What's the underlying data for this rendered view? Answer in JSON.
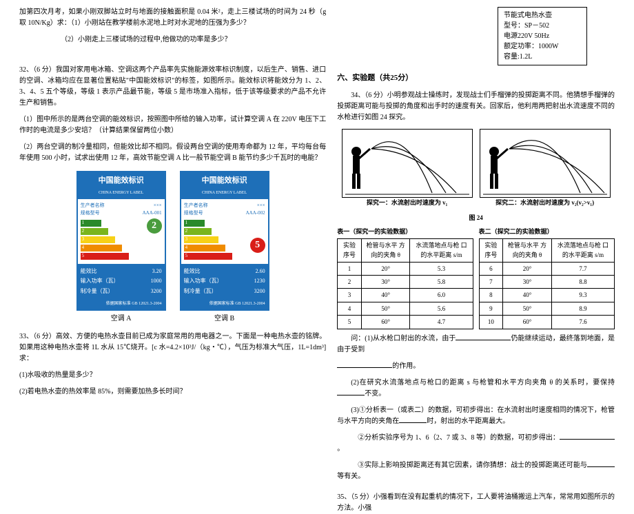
{
  "left": {
    "q_intro": "加第四次月考，如果小刚双脚站立时与地面的接触面积是 0.04 米²，走上三楼试场的时间为 24 秒（g 取 10N/Kg）求：（1）小刚站在教学楼前水泥地上时对水泥地的压强为多少？",
    "q_intro2": "（2）小刚走上三楼试场的过程中,他做功的功率是多少？",
    "q32": "32、（6 分）我国对家用电冰箱、空调这两个产品率先实施能源效率标识制度，以后生产、销售、进口的空调、冰箱均应在显著位置粘贴\"中国能效标识\"的标签，如图所示。能效标识将能效分为 1、2、3、4、5 五个等级，等级 1 表示产品最节能，等级 5 是市场准入指标，低于该等级要求的产品不允许生产和销售。",
    "q32_1": "（1）图中所示的是两台空调的能效标识，按照图中所给的输入功率，试计算空调 A 在 220V 电压下工作时的电流是多少安培？（计算结果保留两位小数）",
    "q32_2": "（2）两台空调的制冷量相同，但能效比却不相同。假设两台空调的使用寿命都为 12 年，平均每台每年使用 500 小时，试求出使用 12 年，高效节能空调 A 比一般节能空调 B 能节约多少千瓦时的电能？",
    "labelA": {
      "title": "中国能效标识",
      "sub": "CHINA ENERGY LABEL",
      "producer_label": "生产者名称",
      "producer": "×××",
      "model_label": "规格型号",
      "model": "AAA-001",
      "eff_level": "2",
      "eff_color": "#4a9c3e",
      "bars": [
        {
          "w": 30,
          "c": "#2a8a2a",
          "t": "1"
        },
        {
          "w": 40,
          "c": "#7ab51d",
          "t": "2"
        },
        {
          "w": 50,
          "c": "#f7d117",
          "t": "3"
        },
        {
          "w": 60,
          "c": "#f08c00",
          "t": "4"
        },
        {
          "w": 70,
          "c": "#d91e18",
          "t": "5"
        }
      ],
      "rows": [
        {
          "k": "能效比",
          "v": "3.20"
        },
        {
          "k": "输入功率（瓦）",
          "v": "1000"
        },
        {
          "k": "制冷量（瓦）",
          "v": "3200"
        }
      ],
      "std": "依据国家标准 GB 12021.3-2004",
      "caption": "空调 A"
    },
    "labelB": {
      "title": "中国能效标识",
      "sub": "CHINA ENERGY LABEL",
      "producer_label": "生产者名称",
      "producer": "×××",
      "model_label": "规格型号",
      "model": "AAA-002",
      "eff_level": "5",
      "eff_color": "#d91e18",
      "bars": [
        {
          "w": 30,
          "c": "#2a8a2a",
          "t": "1"
        },
        {
          "w": 40,
          "c": "#7ab51d",
          "t": "2"
        },
        {
          "w": 50,
          "c": "#f7d117",
          "t": "3"
        },
        {
          "w": 60,
          "c": "#f08c00",
          "t": "4"
        },
        {
          "w": 70,
          "c": "#d91e18",
          "t": "5"
        }
      ],
      "rows": [
        {
          "k": "能效比",
          "v": "2.60"
        },
        {
          "k": "输入功率（瓦）",
          "v": "1230"
        },
        {
          "k": "制冷量（瓦）",
          "v": "3200"
        }
      ],
      "std": "依据国家标准 GB 12021.3-2004",
      "caption": "空调 B"
    },
    "q33": "33、（6 分）高效、方便的电热水壶目前已成为家庭常用的用电器之一。下面是一种电热水壶的铭牌。如果用这种电热水壶将 1L 水从 15℃烧开。[c 水=4.2×10³J/（kg・℃），气压为标准大气压，1L=1dm³]求：",
    "q33_1": "(1)水吸收的热量是多少？",
    "q33_2": "(2)若电热水壶的热效率是 85%，则需要加热多长时间？"
  },
  "right": {
    "spec": {
      "l1": "节能式电热水壶",
      "l2": "型号：SP－502",
      "l3": "电源220V 50Hz",
      "l4": "额定功率：1000W",
      "l5": "容量:1.2L"
    },
    "section": "六、实验题（共25分）",
    "q34": "34、（6 分）小明参观战士操练时，发现战士们手榴弹的投掷距离不同。他猜想手榴弹的投掷距离可能与投掷的角度和出手时的速度有关。回家后，他利用两把射出水流速度不同的水枪进行如图 24 探究。",
    "fig1_cap": "探究一：水流射出时速度为 v₁",
    "fig2_cap": "探究二：水流射出时速度为 v₂(v₂>v₁)",
    "fig_main_cap": "图 24",
    "table1_title": "表一（探究一的实验数据）",
    "table2_title": "表二（探究二的实验数据）",
    "th": {
      "c1": "实验\n序号",
      "c2": "枪管与水平\n方向的夹角 θ",
      "c3": "水流落地点与枪\n口的水平距离 s/m"
    },
    "t1": [
      [
        "1",
        "20°",
        "5.3"
      ],
      [
        "2",
        "30°",
        "5.8"
      ],
      [
        "3",
        "40°",
        "6.0"
      ],
      [
        "4",
        "50°",
        "5.6"
      ],
      [
        "5",
        "60°",
        "4.7"
      ]
    ],
    "t2": [
      [
        "6",
        "20°",
        "7.7"
      ],
      [
        "7",
        "30°",
        "8.8"
      ],
      [
        "8",
        "40°",
        "9.3"
      ],
      [
        "9",
        "50°",
        "8.9"
      ],
      [
        "10",
        "60°",
        "7.6"
      ]
    ],
    "ans_intro": "问：(1)从水枪口射出的水流，由于",
    "ans_intro2": "仍能继续运动，最终落到地面，是由于受到",
    "ans_intro3": "的作用。",
    "ans2": "(2)在研究水流落地点与枪口的距离 s 与枪管和水平方向夹角 θ 的关系时，要保持",
    "ans2b": "不变。",
    "ans3": "(3)①分析表一（或表二）的数据，可初步得出：在水流射出时速度相同的情况下，枪管与水平方向的夹角在",
    "ans3b": "时，射出的水平距离最大。",
    "ans3c": "②分析实验序号为 1、6（2、7 或 3、8 等）的数据，可初步得出：",
    "ans3d": "。",
    "ans3e": "③实际上影响投掷距离还有其它因素，请你猜想：战士的投掷距离还可能与",
    "ans3f": "等有关。",
    "q35": "35、（5 分）小强看到在没有起重机的情况下，工人要将油桶搬运上汽车，常常用如图所示的方法。小强"
  }
}
